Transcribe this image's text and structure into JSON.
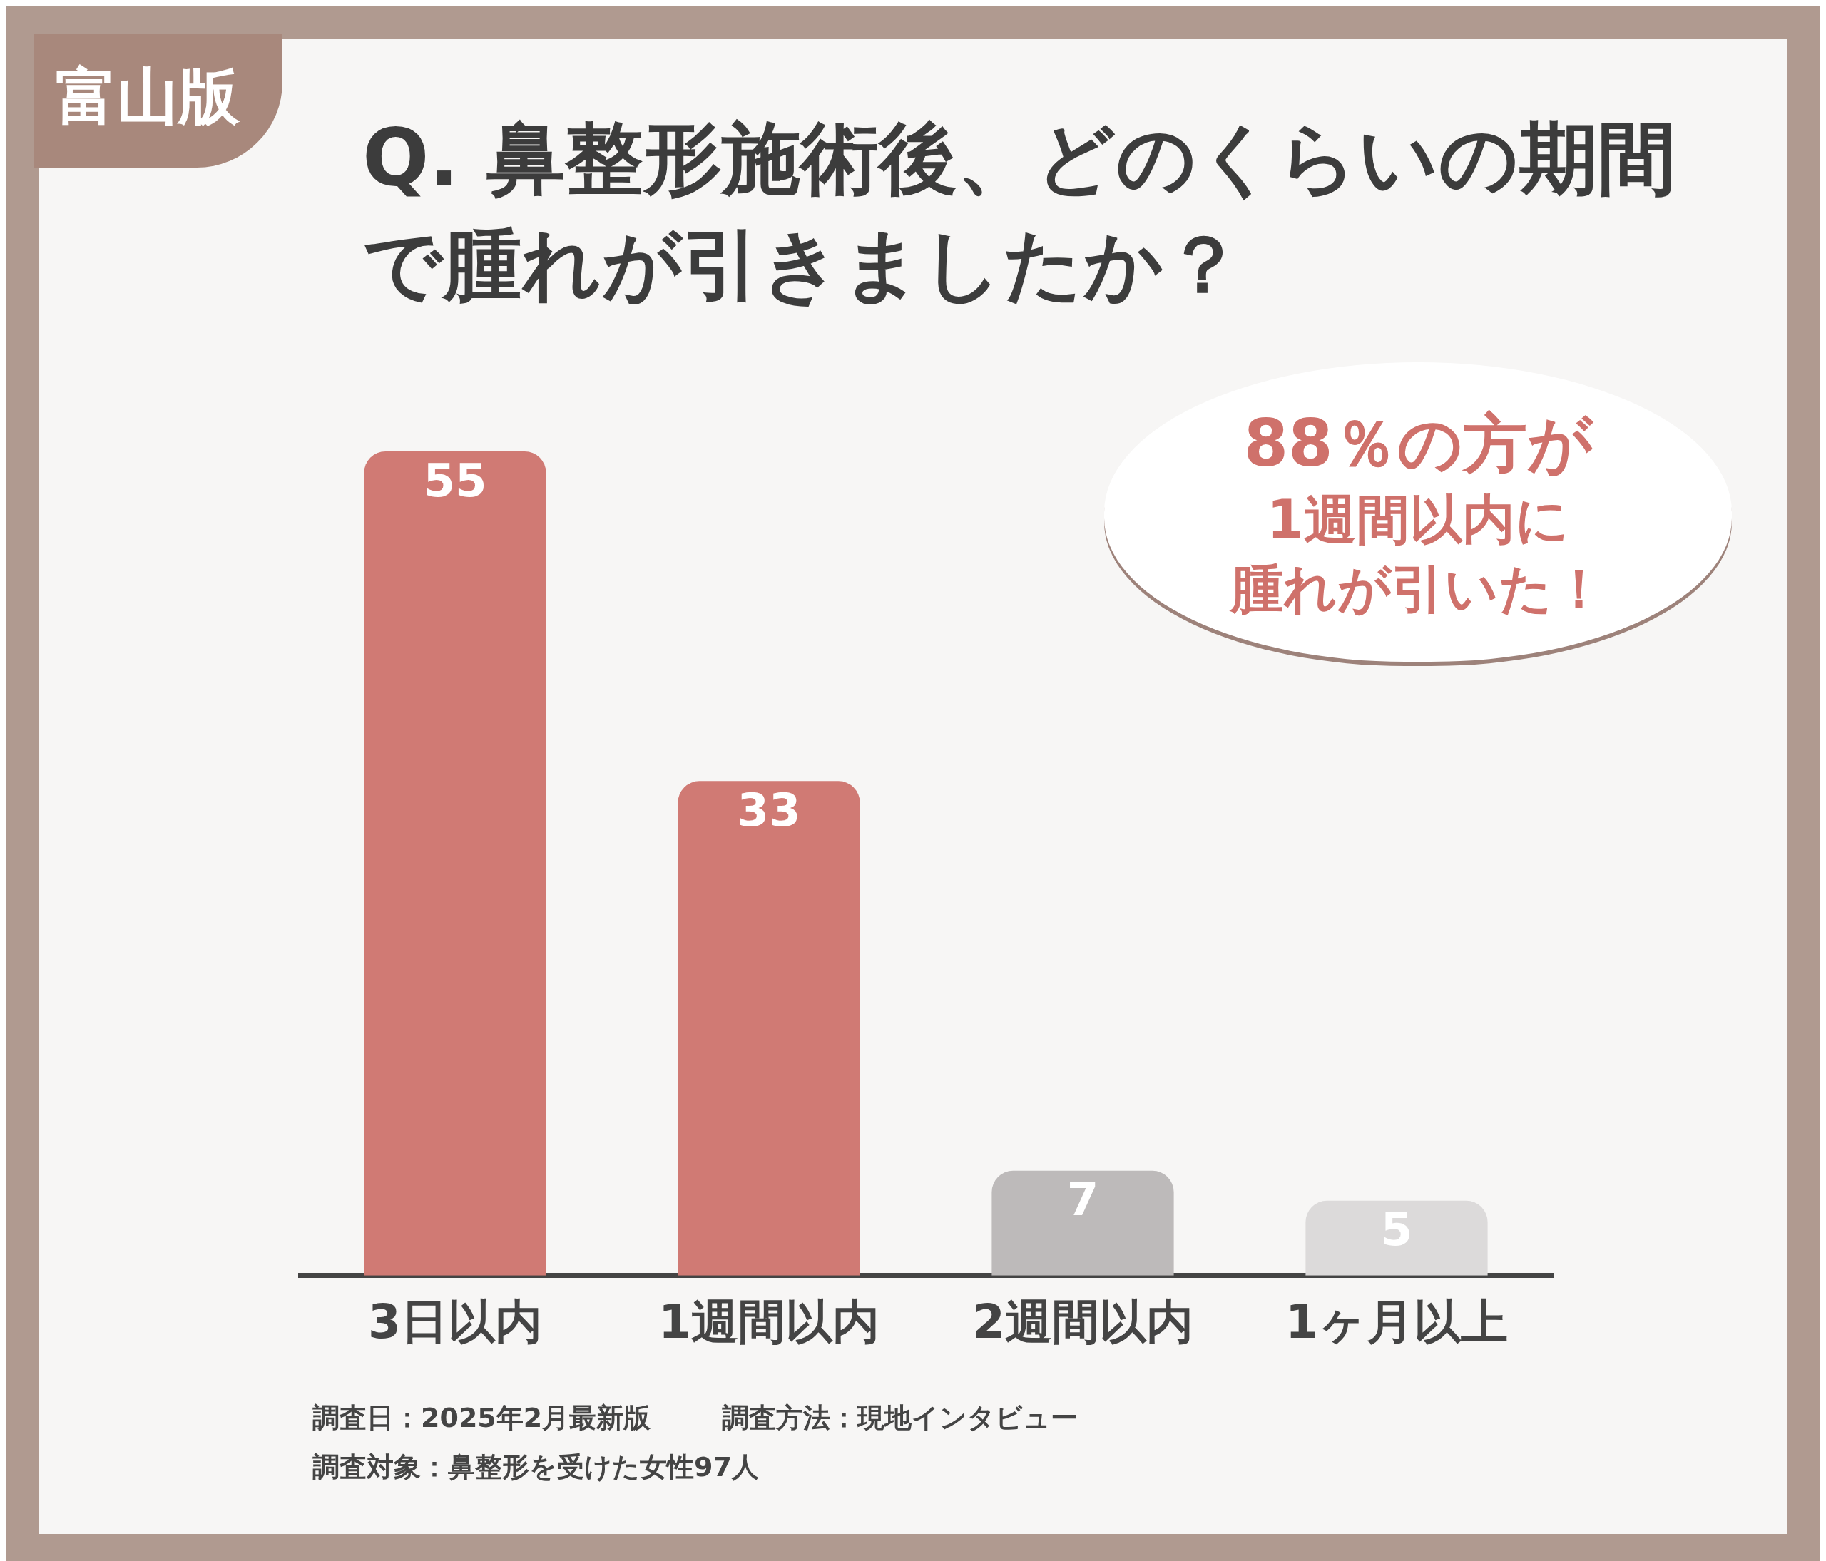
{
  "chart_data": {
    "type": "bar",
    "title": "Q. 鼻整形施術後、どのくらいの期間で腫れが引きましたか？",
    "subtitle": "富山版",
    "categories": [
      "3日以内",
      "1週間以内",
      "2週間以内",
      "1ヶ月以上"
    ],
    "values": [
      55,
      33,
      7,
      5
    ],
    "colors": [
      "#d07a74",
      "#d07a74",
      "#bdbaba",
      "#dcdada"
    ],
    "data_labels": true,
    "grid": false,
    "legend": false,
    "tick_labels": "x",
    "annotations": [
      "88％の方が",
      "1週間以内に",
      "腫れが引いた！",
      "調査日：2025年2月最新版",
      "調査方法：現地インタビュー",
      "調査対象：鼻整形を受けた女性97人"
    ]
  }
}
